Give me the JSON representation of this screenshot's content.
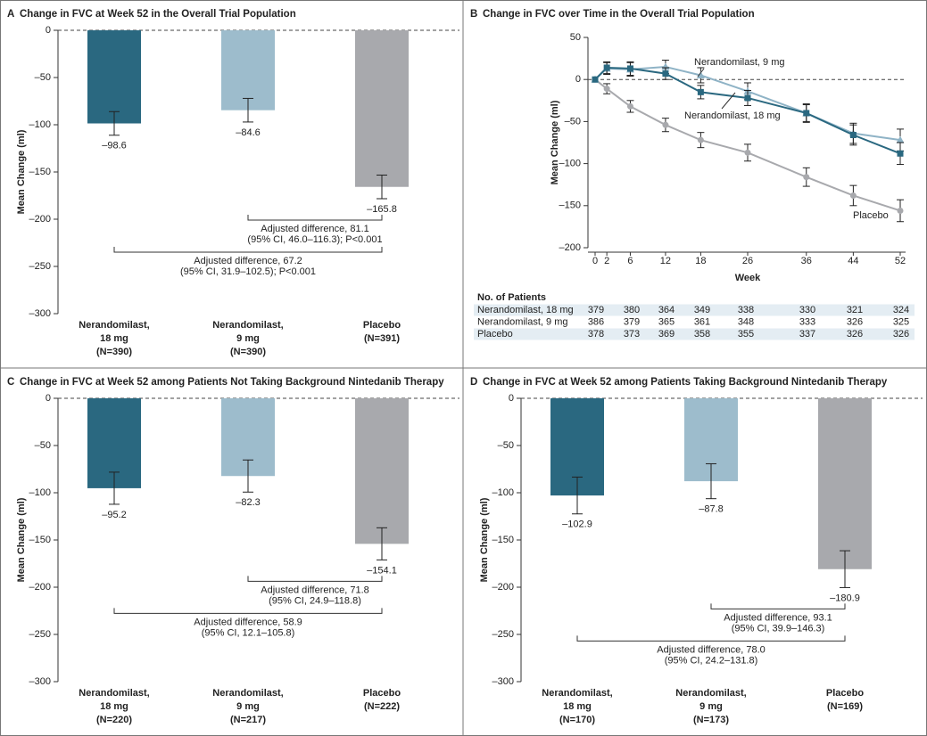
{
  "chart_data": [
    {
      "type": "bar",
      "panel": "A",
      "title": "Change in FVC at Week 52 in the Overall Trial Population",
      "ylabel": "Mean Change (ml)",
      "categories": [
        [
          "Nerandomilast,",
          "18 mg",
          "(N=390)"
        ],
        [
          "Nerandomilast,",
          "9 mg",
          "(N=390)"
        ],
        [
          "Placebo",
          "(N=391)"
        ]
      ],
      "values": [
        -98.6,
        -84.6,
        -165.8
      ],
      "value_labels": [
        "–98.6",
        "–84.6",
        "–165.8"
      ],
      "errors": [
        12.5,
        12.5,
        12.5
      ],
      "colors": [
        "#2a6880",
        "#9dbccc",
        "#a8a9ad"
      ],
      "ylim": [
        -300,
        0
      ],
      "yticks": [
        0,
        {
          "value": -50,
          "label": "–50"
        },
        {
          "value": -100,
          "label": "–100"
        },
        {
          "value": -150,
          "label": "–150"
        },
        {
          "value": -200,
          "label": "–200"
        },
        {
          "value": -250,
          "label": "–250"
        },
        {
          "value": -300,
          "label": "–300"
        }
      ],
      "annotations": [
        [
          "Adjusted difference, 81.1",
          "(95% CI, 46.0–116.3); P<0.001"
        ],
        [
          "Adjusted difference, 67.2",
          "(95% CI, 31.9–102.5); P<0.001"
        ]
      ]
    },
    {
      "type": "line",
      "panel": "B",
      "title": "Change in FVC over Time in the Overall Trial Population",
      "xlabel": "Week",
      "ylabel": "Mean Change (ml)",
      "x": [
        0,
        2,
        6,
        12,
        18,
        26,
        36,
        44,
        52
      ],
      "xlim": [
        0,
        52
      ],
      "xticks": [
        0,
        2,
        6,
        12,
        18,
        26,
        36,
        44,
        52
      ],
      "ylim": [
        -200,
        50
      ],
      "yticks": [
        50,
        0,
        {
          "value": -50,
          "label": "–50"
        },
        {
          "value": -100,
          "label": "–100"
        },
        {
          "value": -150,
          "label": "–150"
        },
        {
          "value": -200,
          "label": "–200"
        }
      ],
      "series": [
        {
          "name": "Nerandomilast, 18 mg",
          "color": "#2a6880",
          "marker": "square",
          "values": [
            0,
            14,
            13,
            7,
            -15,
            -22,
            -40,
            -66,
            -88
          ],
          "errors": [
            null,
            7,
            8,
            7,
            8,
            9,
            10,
            12,
            13
          ]
        },
        {
          "name": "Nerandomilast, 9 mg",
          "color": "#8fb3c6",
          "marker": "triangle",
          "values": [
            0,
            13,
            12,
            15,
            5,
            -14,
            -40,
            -64,
            -72
          ],
          "errors": [
            null,
            7,
            8,
            8,
            9,
            10,
            11,
            12,
            13
          ]
        },
        {
          "name": "Placebo",
          "color": "#a8a9ad",
          "marker": "circle",
          "values": [
            0,
            -11,
            -32,
            -54,
            -72,
            -87,
            -116,
            -138,
            -156
          ],
          "errors": [
            null,
            6,
            7,
            8,
            9,
            10,
            11,
            12,
            13
          ]
        }
      ],
      "patients": {
        "title": "No. of Patients",
        "rows": [
          {
            "name": "Nerandomilast, 18 mg",
            "counts": [
              379,
              380,
              364,
              349,
              338,
              330,
              321,
              324
            ]
          },
          {
            "name": "Nerandomilast, 9 mg",
            "counts": [
              386,
              379,
              365,
              361,
              348,
              333,
              326,
              325
            ]
          },
          {
            "name": "Placebo",
            "counts": [
              378,
              373,
              369,
              358,
              355,
              337,
              326,
              326
            ]
          }
        ]
      }
    },
    {
      "type": "bar",
      "panel": "C",
      "title": "Change in FVC at Week 52 among Patients Not Taking Background Nintedanib Therapy",
      "ylabel": "Mean Change (ml)",
      "categories": [
        [
          "Nerandomilast,",
          "18 mg",
          "(N=220)"
        ],
        [
          "Nerandomilast,",
          "9 mg",
          "(N=217)"
        ],
        [
          "Placebo",
          "(N=222)"
        ]
      ],
      "values": [
        -95.2,
        -82.3,
        -154.1
      ],
      "value_labels": [
        "–95.2",
        "–82.3",
        "–154.1"
      ],
      "errors": [
        17,
        17,
        17
      ],
      "colors": [
        "#2a6880",
        "#9dbccc",
        "#a8a9ad"
      ],
      "ylim": [
        -300,
        0
      ],
      "yticks": [
        0,
        {
          "value": -50,
          "label": "–50"
        },
        {
          "value": -100,
          "label": "–100"
        },
        {
          "value": -150,
          "label": "–150"
        },
        {
          "value": -200,
          "label": "–200"
        },
        {
          "value": -250,
          "label": "–250"
        },
        {
          "value": -300,
          "label": "–300"
        }
      ],
      "annotations": [
        [
          "Adjusted difference, 71.8",
          "(95% CI, 24.9–118.8)"
        ],
        [
          "Adjusted difference, 58.9",
          "(95% CI, 12.1–105.8)"
        ]
      ]
    },
    {
      "type": "bar",
      "panel": "D",
      "title": "Change in FVC at Week 52 among Patients Taking Background Nintedanib Therapy",
      "ylabel": "Mean Change (ml)",
      "categories": [
        [
          "Nerandomilast,",
          "18 mg",
          "(N=170)"
        ],
        [
          "Nerandomilast,",
          "9 mg",
          "(N=173)"
        ],
        [
          "Placebo",
          "(N=169)"
        ]
      ],
      "values": [
        -102.9,
        -87.8,
        -180.9
      ],
      "value_labels": [
        "–102.9",
        "–87.8",
        "–180.9"
      ],
      "errors": [
        19.5,
        18.5,
        19.5
      ],
      "colors": [
        "#2a6880",
        "#9dbccc",
        "#a8a9ad"
      ],
      "ylim": [
        -300,
        0
      ],
      "yticks": [
        0,
        {
          "value": -50,
          "label": "–50"
        },
        {
          "value": -100,
          "label": "–100"
        },
        {
          "value": -150,
          "label": "–150"
        },
        {
          "value": -200,
          "label": "–200"
        },
        {
          "value": -250,
          "label": "–250"
        },
        {
          "value": -300,
          "label": "–300"
        }
      ],
      "annotations": [
        [
          "Adjusted difference, 93.1",
          "(95% CI, 39.9–146.3)"
        ],
        [
          "Adjusted difference, 78.0",
          "(95% CI, 24.2–131.8)"
        ]
      ]
    }
  ]
}
